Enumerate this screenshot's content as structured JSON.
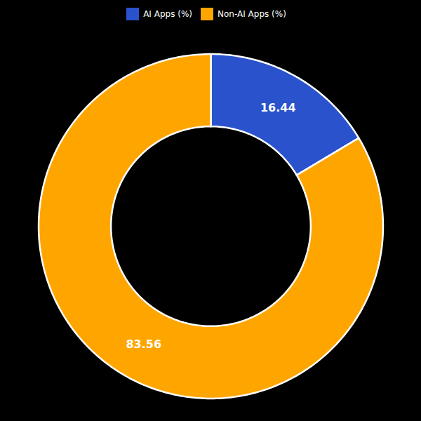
{
  "chart_data": {
    "type": "pie",
    "categories": [
      "AI Apps (%)",
      "Non-AI Apps (%)"
    ],
    "values": [
      16.44,
      83.56
    ],
    "colors": [
      "#2952cc",
      "#FFA500"
    ],
    "data_labels": true,
    "legend": "top"
  }
}
